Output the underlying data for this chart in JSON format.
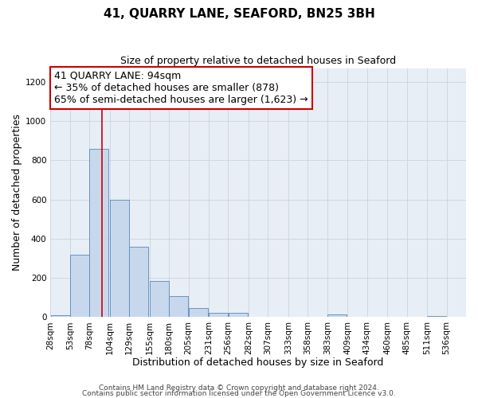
{
  "title": "41, QUARRY LANE, SEAFORD, BN25 3BH",
  "subtitle": "Size of property relative to detached houses in Seaford",
  "xlabel": "Distribution of detached houses by size in Seaford",
  "ylabel": "Number of detached properties",
  "bar_left_edges": [
    28,
    53,
    78,
    104,
    129,
    155,
    180,
    205,
    231,
    256,
    282,
    307,
    333,
    358,
    383,
    409,
    434,
    460,
    485,
    511
  ],
  "bar_heights": [
    10,
    320,
    860,
    600,
    360,
    185,
    105,
    45,
    20,
    20,
    0,
    0,
    0,
    0,
    15,
    0,
    0,
    0,
    0,
    5
  ],
  "bin_width": 25,
  "tick_labels": [
    "28sqm",
    "53sqm",
    "78sqm",
    "104sqm",
    "129sqm",
    "155sqm",
    "180sqm",
    "205sqm",
    "231sqm",
    "256sqm",
    "282sqm",
    "307sqm",
    "333sqm",
    "358sqm",
    "383sqm",
    "409sqm",
    "434sqm",
    "460sqm",
    "485sqm",
    "511sqm",
    "536sqm"
  ],
  "bar_color": "#c8d8ec",
  "bar_edge_color": "#5588bb",
  "vline_x": 94,
  "vline_color": "#cc0000",
  "annotation_text_line1": "41 QUARRY LANE: 94sqm",
  "annotation_text_line2": "← 35% of detached houses are smaller (878)",
  "annotation_text_line3": "65% of semi-detached houses are larger (1,623) →",
  "annotation_box_color": "#ffffff",
  "annotation_box_edge_color": "#cc0000",
  "ylim": [
    0,
    1270
  ],
  "xlim": [
    28,
    561
  ],
  "grid_color": "#c8d4e0",
  "bg_color": "#e8eef5",
  "footer_line1": "Contains HM Land Registry data © Crown copyright and database right 2024.",
  "footer_line2": "Contains public sector information licensed under the Open Government Licence v3.0.",
  "title_fontsize": 11,
  "subtitle_fontsize": 9,
  "xlabel_fontsize": 9,
  "ylabel_fontsize": 9,
  "tick_fontsize": 7.5,
  "annotation_fontsize": 9,
  "footer_fontsize": 6.5
}
